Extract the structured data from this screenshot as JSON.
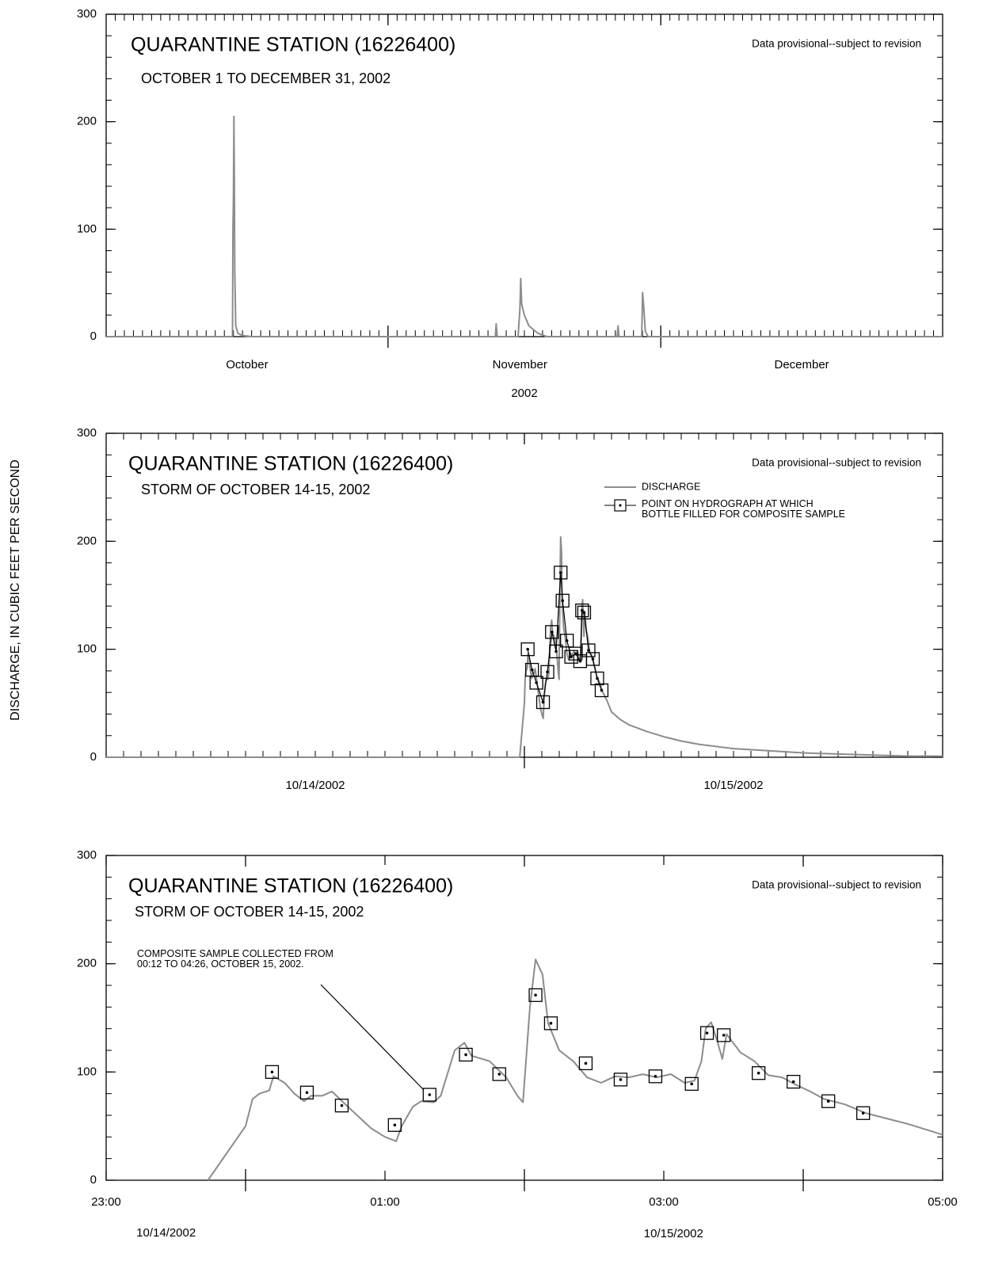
{
  "y_axis_label": "DISCHARGE, IN CUBIC FEET PER SECOND",
  "chart_data": [
    {
      "type": "line",
      "title": "QUARANTINE STATION (16226400)",
      "subtitle": "OCTOBER 1 TO DECEMBER 31, 2002",
      "note": "Data provisional--subject to revision",
      "xlabel": "2002",
      "xlim": [
        0,
        92
      ],
      "xticks": [
        {
          "value": 15.5,
          "label": "October"
        },
        {
          "value": 45.5,
          "label": "November"
        },
        {
          "value": 76.5,
          "label": "December"
        }
      ],
      "xtick_marks": false,
      "xmajor": [
        31,
        61
      ],
      "xminor_step": 1,
      "ylim": [
        0,
        300
      ],
      "yticks": [
        0,
        100,
        200,
        300
      ],
      "yminor_step": 20,
      "series": [
        {
          "color": "#8c8c8c",
          "x": [
            0,
            13.9,
            13.95,
            14.0,
            14.05,
            14.1,
            14.15,
            14.25,
            14.5,
            15,
            16,
            42.8,
            42.9,
            43.0,
            45.3,
            45.5,
            45.6,
            45.7,
            46,
            46.5,
            47.5,
            48.5,
            56.2,
            56.3,
            56.4,
            58.9,
            59.0,
            59.1,
            59.3,
            59.6,
            92
          ],
          "values": [
            0,
            0,
            100,
            130,
            205,
            150,
            60,
            10,
            3,
            1,
            0,
            0,
            12,
            0,
            0,
            25,
            54,
            30,
            20,
            10,
            3,
            0,
            0,
            10,
            0,
            0,
            41,
            30,
            5,
            0,
            0
          ]
        }
      ]
    },
    {
      "type": "line",
      "title": "QUARANTINE STATION (16226400)",
      "subtitle": "STORM OF OCTOBER 14-15, 2002",
      "note": "Data provisional--subject to revision",
      "xlim": [
        0,
        48
      ],
      "xticks": [
        {
          "value": 12,
          "label": "10/14/2002"
        },
        {
          "value": 36,
          "label": "10/15/2002"
        }
      ],
      "xtick_marks": false,
      "xmajor": [
        24
      ],
      "xminor_step": 1,
      "ylim": [
        0,
        300
      ],
      "yticks": [
        0,
        100,
        200,
        300
      ],
      "yminor_step": 20,
      "series": [
        {
          "name": "DISCHARGE",
          "color": "#8c8c8c",
          "x": [
            0,
            23.73,
            24.0,
            24.05,
            24.1,
            24.17,
            24.2,
            24.28,
            24.35,
            24.42,
            24.47,
            24.55,
            24.62,
            24.7,
            24.8,
            24.9,
            25.0,
            25.08,
            25.12,
            25.2,
            25.26,
            25.35,
            25.4,
            25.5,
            25.57,
            25.62,
            25.75,
            25.87,
            25.95,
            25.99,
            26.04,
            26.08,
            26.13,
            26.17,
            26.25,
            26.35,
            26.45,
            26.55,
            26.65,
            26.75,
            26.85,
            26.95,
            27.05,
            27.15,
            27.22,
            27.27,
            27.3,
            27.34,
            27.38,
            27.42,
            27.45,
            27.55,
            27.65,
            27.75,
            27.85,
            27.95,
            28.05,
            28.15,
            28.3,
            28.45,
            28.6,
            28.75,
            28.9,
            29.0,
            29.5,
            30,
            31,
            32,
            33,
            34,
            36,
            38,
            40,
            42,
            44,
            46,
            48
          ],
          "values": [
            0,
            0,
            50,
            75,
            80,
            83,
            96,
            90,
            80,
            73,
            78,
            78,
            82,
            72,
            60,
            48,
            40,
            36,
            50,
            68,
            73,
            72,
            78,
            120,
            127,
            115,
            110,
            95,
            78,
            72,
            160,
            204,
            190,
            145,
            120,
            110,
            95,
            90,
            96,
            95,
            98,
            95,
            98,
            90,
            92,
            110,
            140,
            146,
            130,
            112,
            135,
            118,
            110,
            97,
            95,
            88,
            82,
            75,
            70,
            62,
            57,
            52,
            46,
            42,
            35,
            30,
            24,
            19,
            15,
            12,
            8,
            6,
            4,
            3,
            2,
            1,
            1
          ]
        },
        {
          "name": "POINT ON HYDROGRAPH  AT WHICH\nBOTTLE FILLED FOR COMPOSITE SAMPLE",
          "color": "#000000",
          "marker": "square",
          "connect": true,
          "x": [
            24.19,
            24.44,
            24.69,
            25.07,
            25.32,
            25.58,
            25.82,
            26.08,
            26.19,
            26.44,
            26.69,
            26.94,
            27.2,
            27.31,
            27.43,
            27.68,
            27.93,
            28.18,
            28.43
          ],
          "values": [
            100,
            81,
            69,
            51,
            79,
            116,
            98,
            171,
            145,
            108,
            93,
            96,
            89,
            136,
            134,
            99,
            91,
            73,
            62
          ]
        }
      ]
    },
    {
      "type": "line",
      "title": "QUARANTINE STATION (16226400)",
      "subtitle": "STORM OF OCTOBER 14-15, 2002",
      "note": "Data provisional--subject to revision",
      "annotation": "COMPOSITE SAMPLE COLLECTED FROM\n00:12 TO 04:26, OCTOBER 15, 2002.",
      "xlim": [
        23,
        29
      ],
      "xticks": [
        {
          "value": 23,
          "label": "23:00"
        },
        {
          "value": 25,
          "label": "01:00"
        },
        {
          "value": 27,
          "label": "03:00"
        },
        {
          "value": 29,
          "label": "05:00"
        }
      ],
      "xtick_marks": true,
      "xmajor": [
        24,
        26,
        28
      ],
      "xdate_labels": [
        {
          "value": 23.43,
          "label": "10/14/2002"
        },
        {
          "value": 27.07,
          "label": "10/15/2002"
        }
      ],
      "ylim": [
        0,
        300
      ],
      "yticks": [
        0,
        100,
        200,
        300
      ],
      "yminor_step": 20,
      "series": [
        {
          "color": "#8c8c8c",
          "x": [
            23.73,
            24.0,
            24.05,
            24.1,
            24.17,
            24.2,
            24.28,
            24.35,
            24.42,
            24.47,
            24.55,
            24.62,
            24.7,
            24.8,
            24.9,
            25.0,
            25.08,
            25.12,
            25.2,
            25.26,
            25.35,
            25.4,
            25.5,
            25.57,
            25.62,
            25.75,
            25.87,
            25.95,
            25.99,
            26.04,
            26.08,
            26.13,
            26.17,
            26.25,
            26.35,
            26.45,
            26.55,
            26.65,
            26.75,
            26.85,
            26.95,
            27.05,
            27.15,
            27.22,
            27.27,
            27.3,
            27.34,
            27.38,
            27.42,
            27.45,
            27.55,
            27.65,
            27.75,
            27.85,
            27.95,
            28.05,
            28.15,
            28.3,
            28.45,
            28.6,
            28.75,
            28.9,
            29.0
          ],
          "values": [
            0,
            50,
            75,
            80,
            83,
            96,
            90,
            80,
            73,
            78,
            78,
            82,
            72,
            60,
            48,
            40,
            36,
            50,
            68,
            73,
            72,
            78,
            120,
            127,
            115,
            110,
            95,
            78,
            72,
            160,
            204,
            190,
            145,
            120,
            110,
            95,
            90,
            96,
            95,
            98,
            95,
            98,
            90,
            92,
            110,
            140,
            146,
            130,
            112,
            135,
            118,
            110,
            97,
            95,
            88,
            82,
            75,
            70,
            62,
            57,
            52,
            46,
            42
          ]
        },
        {
          "color": "#000000",
          "marker": "square",
          "connect": false,
          "x": [
            24.19,
            24.44,
            24.69,
            25.07,
            25.32,
            25.58,
            25.82,
            26.08,
            26.19,
            26.44,
            26.69,
            26.94,
            27.2,
            27.31,
            27.43,
            27.68,
            27.93,
            28.18,
            28.43
          ],
          "values": [
            100,
            81,
            69,
            51,
            79,
            116,
            98,
            171,
            145,
            108,
            93,
            96,
            89,
            136,
            134,
            99,
            91,
            73,
            62
          ]
        }
      ]
    }
  ]
}
